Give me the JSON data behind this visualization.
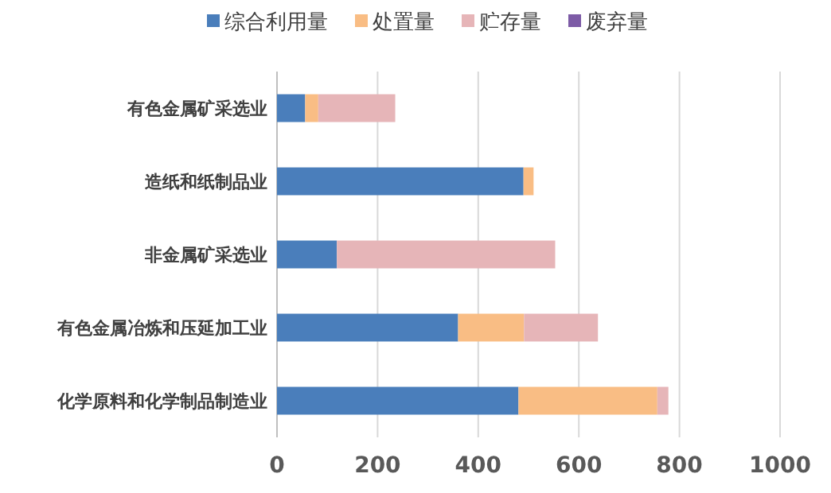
{
  "chart_data": {
    "type": "bar",
    "orientation": "horizontal",
    "stacked": true,
    "categories": [
      "有色金属矿采选业",
      "造纸和纸制品业",
      "非金属矿采选业",
      "有色金属冶炼和压延加工业",
      "化学原料和化学制品制造业"
    ],
    "series": [
      {
        "name": "综合利用量",
        "color": "#4a7ebb",
        "values": [
          56,
          490,
          119,
          360,
          480
        ]
      },
      {
        "name": "处置量",
        "color": "#f9bd84",
        "values": [
          26,
          20,
          0,
          131,
          276
        ]
      },
      {
        "name": "贮存量",
        "color": "#e6b5b8",
        "values": [
          153,
          0,
          434,
          147,
          22
        ]
      },
      {
        "name": "废弃量",
        "color": "#7d5ba6",
        "values": [
          0,
          0,
          0,
          0,
          0
        ]
      }
    ],
    "xlim": [
      0,
      1000
    ],
    "xticks": [
      0,
      200,
      400,
      600,
      800,
      1000
    ],
    "grid": "x",
    "legend": "top"
  }
}
